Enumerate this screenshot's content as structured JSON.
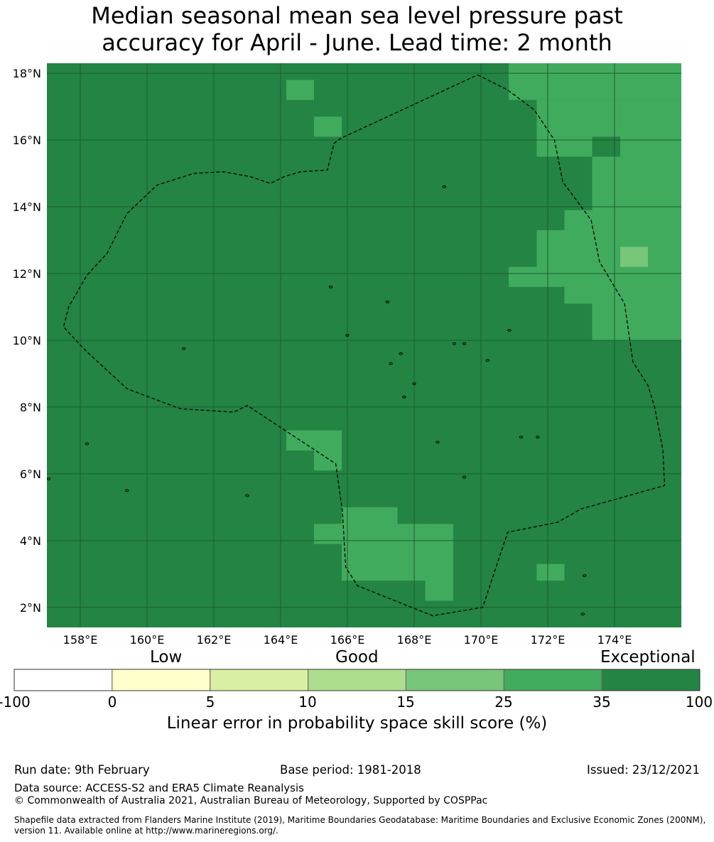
{
  "title": {
    "line1": "Median seasonal mean sea level pressure past",
    "line2": "accuracy for April - June. Lead time: 2 month"
  },
  "map": {
    "lon_range": [
      157.0,
      176.0
    ],
    "lat_range": [
      1.4,
      18.3
    ],
    "lon_ticks": [
      158,
      160,
      162,
      164,
      166,
      168,
      170,
      172,
      174
    ],
    "lat_ticks": [
      2,
      4,
      6,
      8,
      10,
      12,
      14,
      16,
      18
    ],
    "lon_tick_labels": [
      "158°E",
      "160°E",
      "162°E",
      "164°E",
      "166°E",
      "168°E",
      "170°E",
      "172°E",
      "174°E"
    ],
    "lat_tick_labels": [
      "2°N",
      "4°N",
      "6°N",
      "8°N",
      "10°N",
      "12°N",
      "14°N",
      "16°N",
      "18°N"
    ],
    "background_category": "Exceptional (35 to 100)",
    "background_color": "#238443",
    "skill_cells": [
      {
        "lon": [
          170.83,
          176.0
        ],
        "lat": [
          17.2,
          18.3
        ],
        "color": "#41ab5d"
      },
      {
        "lon": [
          171.67,
          174.17
        ],
        "lat": [
          16.1,
          17.2
        ],
        "color": "#41ab5d"
      },
      {
        "lon": [
          174.17,
          176.0
        ],
        "lat": [
          15.5,
          17.2
        ],
        "color": "#41ab5d"
      },
      {
        "lon": [
          171.67,
          173.33
        ],
        "lat": [
          15.5,
          16.1
        ],
        "color": "#41ab5d"
      },
      {
        "lon": [
          173.33,
          176.0
        ],
        "lat": [
          10.0,
          15.5
        ],
        "color": "#41ab5d"
      },
      {
        "lon": [
          172.5,
          173.33
        ],
        "lat": [
          12.8,
          13.9
        ],
        "color": "#41ab5d"
      },
      {
        "lon": [
          171.67,
          172.5
        ],
        "lat": [
          11.6,
          13.3
        ],
        "color": "#41ab5d"
      },
      {
        "lon": [
          170.83,
          171.67
        ],
        "lat": [
          11.6,
          12.2
        ],
        "color": "#41ab5d"
      },
      {
        "lon": [
          172.5,
          173.33
        ],
        "lat": [
          11.1,
          12.8
        ],
        "color": "#41ab5d"
      },
      {
        "lon": [
          174.17,
          175.0
        ],
        "lat": [
          12.2,
          12.8
        ],
        "color": "#78c679"
      },
      {
        "lon": [
          164.17,
          165.0
        ],
        "lat": [
          17.2,
          17.8
        ],
        "color": "#41ab5d"
      },
      {
        "lon": [
          165.0,
          165.83
        ],
        "lat": [
          16.1,
          16.7
        ],
        "color": "#41ab5d"
      },
      {
        "lon": [
          164.17,
          165.83
        ],
        "lat": [
          6.7,
          7.3
        ],
        "color": "#41ab5d"
      },
      {
        "lon": [
          165.0,
          165.83
        ],
        "lat": [
          6.1,
          6.7
        ],
        "color": "#41ab5d"
      },
      {
        "lon": [
          165.83,
          167.5
        ],
        "lat": [
          2.8,
          5.0
        ],
        "color": "#41ab5d"
      },
      {
        "lon": [
          165.0,
          165.83
        ],
        "lat": [
          3.9,
          4.5
        ],
        "color": "#41ab5d"
      },
      {
        "lon": [
          167.5,
          168.33
        ],
        "lat": [
          2.8,
          4.5
        ],
        "color": "#41ab5d"
      },
      {
        "lon": [
          168.33,
          169.17
        ],
        "lat": [
          2.2,
          4.5
        ],
        "color": "#41ab5d"
      },
      {
        "lon": [
          171.67,
          172.5
        ],
        "lat": [
          2.8,
          3.3
        ],
        "color": "#41ab5d"
      }
    ],
    "eez_boundary": [
      [
        169.9,
        17.95
      ],
      [
        170.8,
        17.5
      ],
      [
        171.6,
        16.9
      ],
      [
        172.2,
        16.0
      ],
      [
        172.45,
        14.75
      ],
      [
        173.3,
        13.6
      ],
      [
        173.55,
        12.35
      ],
      [
        174.3,
        11.1
      ],
      [
        174.55,
        9.35
      ],
      [
        175.0,
        8.65
      ],
      [
        175.2,
        8.0
      ],
      [
        175.45,
        6.7
      ],
      [
        175.5,
        5.65
      ],
      [
        173.0,
        4.95
      ],
      [
        172.3,
        4.55
      ],
      [
        170.8,
        4.25
      ],
      [
        170.05,
        2.0
      ],
      [
        168.55,
        1.75
      ],
      [
        166.3,
        2.65
      ],
      [
        165.95,
        3.2
      ],
      [
        165.85,
        4.9
      ],
      [
        165.65,
        6.3
      ],
      [
        163.0,
        8.05
      ],
      [
        162.6,
        7.85
      ],
      [
        161.0,
        7.95
      ],
      [
        159.4,
        8.55
      ],
      [
        158.15,
        9.7
      ],
      [
        157.5,
        10.4
      ],
      [
        157.65,
        11.0
      ],
      [
        158.2,
        11.95
      ],
      [
        158.8,
        12.6
      ],
      [
        159.4,
        13.8
      ],
      [
        160.3,
        14.65
      ],
      [
        161.4,
        15.0
      ],
      [
        162.3,
        15.05
      ],
      [
        163.1,
        14.9
      ],
      [
        163.7,
        14.7
      ],
      [
        164.1,
        14.9
      ],
      [
        164.6,
        15.05
      ],
      [
        165.4,
        15.1
      ],
      [
        165.6,
        15.9
      ],
      [
        165.8,
        16.05
      ],
      [
        169.9,
        17.95
      ]
    ],
    "islands": [
      [
        158.2,
        6.9
      ],
      [
        159.4,
        5.5
      ],
      [
        163.0,
        5.35
      ],
      [
        157.05,
        5.85
      ],
      [
        166.0,
        10.15
      ],
      [
        167.2,
        11.15
      ],
      [
        168.9,
        14.6
      ],
      [
        170.85,
        10.3
      ],
      [
        171.2,
        7.1
      ],
      [
        171.7,
        7.1
      ],
      [
        173.1,
        2.95
      ],
      [
        173.05,
        1.8
      ],
      [
        169.5,
        5.9
      ],
      [
        168.7,
        6.95
      ],
      [
        170.2,
        9.4
      ],
      [
        169.2,
        9.9
      ],
      [
        169.5,
        9.9
      ],
      [
        165.5,
        11.6
      ],
      [
        161.1,
        9.75
      ],
      [
        167.6,
        9.6
      ],
      [
        167.3,
        9.3
      ],
      [
        168.0,
        8.7
      ],
      [
        167.7,
        8.3
      ]
    ]
  },
  "colorbar": {
    "headings": [
      "Low",
      "Good",
      "Exceptional"
    ],
    "bounds": [
      -100,
      0,
      5,
      10,
      15,
      25,
      35,
      100
    ],
    "tick_labels": [
      "-100",
      "0",
      "5",
      "10",
      "15",
      "25",
      "35",
      "100"
    ],
    "colors": [
      "#ffffff",
      "#ffffcc",
      "#d9f0a3",
      "#addd8e",
      "#78c679",
      "#41ab5d",
      "#238443"
    ],
    "label": "Linear error in probability space skill score (%)"
  },
  "footer": {
    "run_date": "Run date: 9th February",
    "base_period": "Base period: 1981-2018",
    "issued": "Issued: 23/12/2021",
    "data_source": "Data source: ACCESS-S2 and ERA5 Climate Reanalysis",
    "copyright": "© Commonwealth of Australia 2021, Australian Bureau of Meteorology, Supported by COSPPac",
    "shapefile_line1": "Shapefile data extracted from Flanders Marine Institute (2019), Maritime Boundaries Geodatabase: Maritime Boundaries and Exclusive Economic Zones (200NM),",
    "shapefile_line2": "version 11. Available online at http://www.marineregions.org/."
  }
}
